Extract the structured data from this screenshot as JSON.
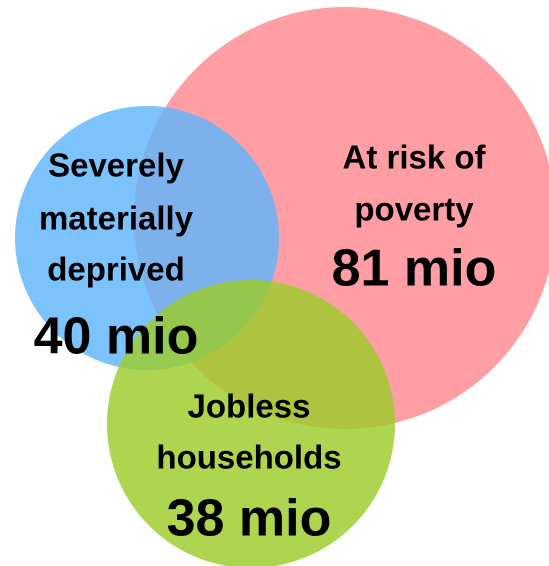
{
  "sets": [
    {
      "label_lines": [
        "At risk of",
        "poverty"
      ],
      "value": "81 mio"
    },
    {
      "label_lines": [
        "Severely",
        "materially",
        "deprived"
      ],
      "value": "40 mio"
    },
    {
      "label_lines": [
        "Jobless",
        "households"
      ],
      "value": "38 mio"
    }
  ]
}
